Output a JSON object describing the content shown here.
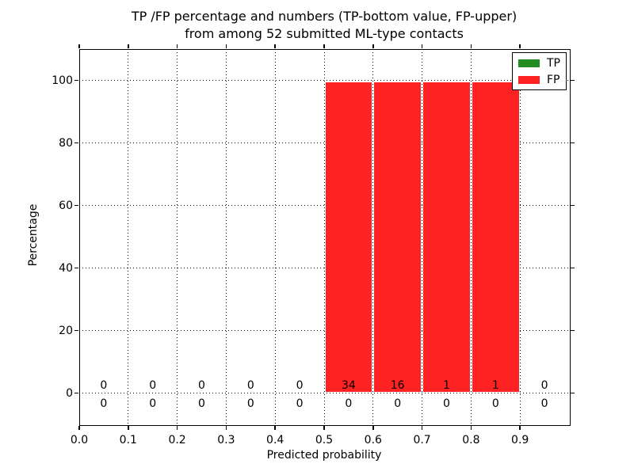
{
  "title": {
    "line1": "TP /FP percentage and numbers (TP-bottom value, FP-upper)",
    "line2": "from among 52 submitted ML-type contacts"
  },
  "chart_data": {
    "type": "bar",
    "stacked": true,
    "title": "TP /FP percentage and numbers (TP-bottom value, FP-upper) from among 52 submitted ML-type contacts",
    "xlabel": "Predicted probability",
    "ylabel": "Percentage",
    "xlim": [
      0.0,
      1.0
    ],
    "ylim": [
      -10,
      110
    ],
    "grid": "dotted",
    "legend_position": "upper-right",
    "xtick_values": [
      0.0,
      0.1,
      0.2,
      0.3,
      0.4,
      0.5,
      0.6,
      0.7,
      0.8,
      0.9
    ],
    "xtick_labels": [
      "0.0",
      "0.1",
      "0.2",
      "0.3",
      "0.4",
      "0.5",
      "0.6",
      "0.7",
      "0.8",
      "0.9"
    ],
    "ytick_values": [
      0,
      20,
      40,
      60,
      80,
      100
    ],
    "ytick_labels": [
      "0",
      "20",
      "40",
      "60",
      "80",
      "100"
    ],
    "bin_edges": [
      0.0,
      0.1,
      0.2,
      0.3,
      0.4,
      0.5,
      0.6,
      0.7,
      0.8,
      0.9,
      1.0
    ],
    "bin_centers": [
      0.05,
      0.15,
      0.25,
      0.35,
      0.45,
      0.55,
      0.65,
      0.75,
      0.85,
      0.95
    ],
    "series": [
      {
        "name": "TP",
        "color": "#228b22",
        "percent": [
          0,
          0,
          0,
          0,
          0,
          0,
          0,
          0,
          0,
          0
        ],
        "counts": [
          0,
          0,
          0,
          0,
          0,
          0,
          0,
          0,
          0,
          0
        ],
        "count_row": "bottom"
      },
      {
        "name": "FP",
        "color": "#ff2222",
        "percent": [
          0,
          0,
          0,
          0,
          0,
          100,
          100,
          100,
          100,
          0
        ],
        "counts": [
          0,
          0,
          0,
          0,
          0,
          34,
          16,
          1,
          1,
          0
        ],
        "count_row": "top"
      }
    ]
  },
  "legend": {
    "entries": [
      {
        "label": "TP",
        "color": "#228b22"
      },
      {
        "label": "FP",
        "color": "#ff2222"
      }
    ]
  }
}
